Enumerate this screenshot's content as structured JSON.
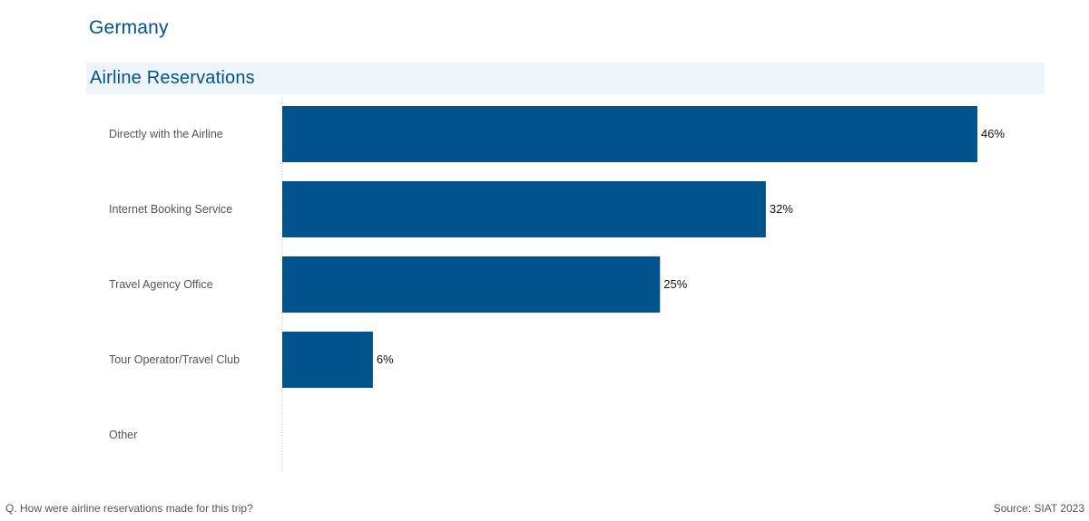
{
  "country": "Germany",
  "section_title": "Airline Reservations",
  "footnote": "Q. How were airline reservations made for this trip?",
  "source": "Source: SIAT 2023",
  "colors": {
    "bar": "#00538b",
    "title": "#00538b",
    "header_bg": "#eef5fa"
  },
  "chart_data": {
    "type": "bar",
    "orientation": "horizontal",
    "categories": [
      "Directly with the Airline",
      "Internet Booking Service",
      "Travel Agency Office",
      "Tour Operator/Travel Club",
      "Other"
    ],
    "values": [
      46,
      32,
      25,
      6,
      null
    ],
    "value_labels": [
      "46%",
      "32%",
      "25%",
      "6%",
      ""
    ],
    "unit": "%",
    "xlim": [
      0,
      50
    ],
    "grid": false,
    "legend": "none"
  }
}
